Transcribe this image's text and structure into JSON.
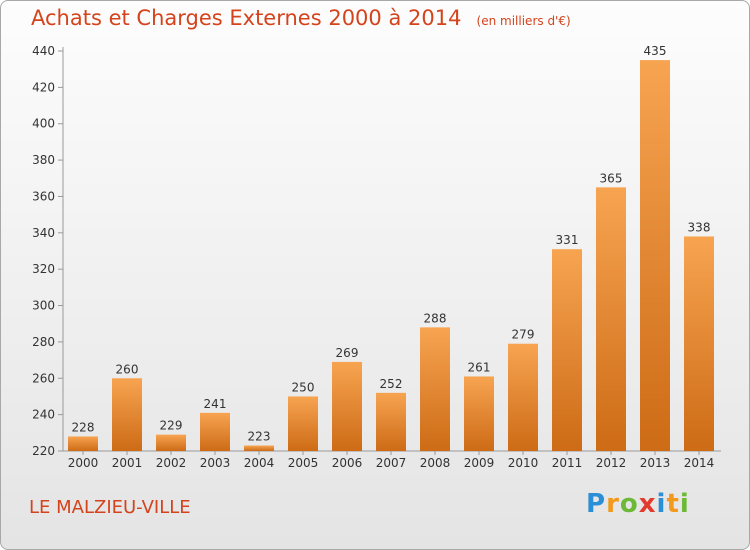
{
  "title": "Achats et Charges Externes 2000 à 2014",
  "unit": "(en milliers d'€)",
  "commune": "LE MALZIEU-VILLE",
  "logo": {
    "text": "Proxiti",
    "colors": [
      "#2a8fd6",
      "#f29a1d",
      "#6bb934",
      "#e23b2e"
    ]
  },
  "chart_data": {
    "type": "bar",
    "categories": [
      "2000",
      "2001",
      "2002",
      "2003",
      "2004",
      "2005",
      "2006",
      "2007",
      "2008",
      "2009",
      "2010",
      "2011",
      "2012",
      "2013",
      "2014"
    ],
    "values": [
      228,
      260,
      229,
      241,
      223,
      250,
      269,
      252,
      288,
      261,
      279,
      331,
      365,
      435,
      338
    ],
    "ylim": [
      220,
      440
    ],
    "yticks": [
      220,
      240,
      260,
      280,
      300,
      320,
      340,
      360,
      380,
      400,
      420,
      440
    ],
    "grid": false,
    "bar_colors": {
      "top": "#f7a451",
      "bottom": "#cd6b16"
    }
  }
}
